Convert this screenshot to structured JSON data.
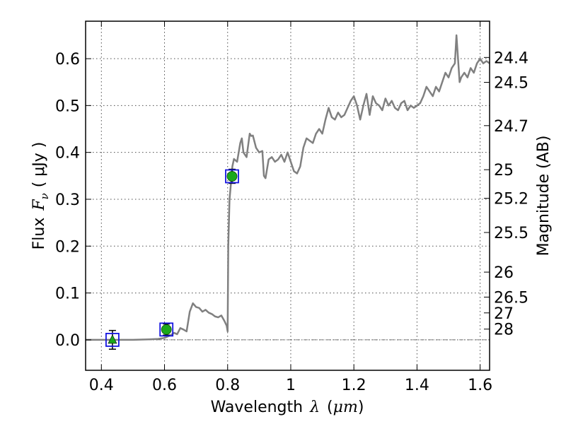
{
  "chart_data": {
    "type": "line",
    "title": "",
    "xlabel": {
      "text": "Wavelength",
      "symbol": "λ",
      "unit_open": "(",
      "unit": "μm",
      "unit_close": ")"
    },
    "ylabel": {
      "text": "Flux",
      "symbol": "F",
      "subscript": "ν",
      "unit": "( μJy )"
    },
    "y2label": "Magnitude (AB)",
    "xlim": [
      0.35,
      1.63
    ],
    "ylim": [
      -0.065,
      0.68
    ],
    "grid": true,
    "x_ticks": [
      0.4,
      0.6,
      0.8,
      1.0,
      1.2,
      1.4,
      1.6
    ],
    "x_tick_labels": [
      "0.4",
      "0.6",
      "0.8",
      "1",
      "1.2",
      "1.4",
      "1.6"
    ],
    "y_ticks": [
      0.0,
      0.1,
      0.2,
      0.3,
      0.4,
      0.5,
      0.6
    ],
    "y_tick_labels": [
      "0.0",
      "0.1",
      "0.2",
      "0.3",
      "0.4",
      "0.5",
      "0.6"
    ],
    "mag_ticks": [
      {
        "label": "24.4",
        "flux": 0.6026
      },
      {
        "label": "24.5",
        "flux": 0.5495
      },
      {
        "label": "24.7",
        "flux": 0.4571
      },
      {
        "label": "25",
        "flux": 0.3631
      },
      {
        "label": "25.2",
        "flux": 0.302
      },
      {
        "label": "25.5",
        "flux": 0.2291
      },
      {
        "label": "26",
        "flux": 0.1445
      },
      {
        "label": "26.5",
        "flux": 0.0912
      },
      {
        "label": "27",
        "flux": 0.0575
      },
      {
        "label": "28",
        "flux": 0.0229
      }
    ],
    "series": [
      {
        "kind": "model-spectrum",
        "color": "#808080",
        "x": [
          0.35,
          0.4,
          0.45,
          0.5,
          0.55,
          0.58,
          0.6,
          0.62,
          0.63,
          0.64,
          0.65,
          0.66,
          0.67,
          0.68,
          0.69,
          0.7,
          0.71,
          0.72,
          0.73,
          0.74,
          0.75,
          0.76,
          0.77,
          0.78,
          0.79,
          0.797,
          0.8,
          0.802,
          0.806,
          0.81,
          0.815,
          0.82,
          0.83,
          0.84,
          0.845,
          0.85,
          0.86,
          0.865,
          0.87,
          0.875,
          0.88,
          0.89,
          0.9,
          0.91,
          0.915,
          0.92,
          0.93,
          0.94,
          0.95,
          0.96,
          0.97,
          0.98,
          0.99,
          1.0,
          1.01,
          1.02,
          1.03,
          1.04,
          1.05,
          1.06,
          1.07,
          1.08,
          1.09,
          1.1,
          1.11,
          1.12,
          1.13,
          1.14,
          1.15,
          1.16,
          1.17,
          1.18,
          1.19,
          1.2,
          1.21,
          1.22,
          1.23,
          1.24,
          1.25,
          1.26,
          1.27,
          1.28,
          1.29,
          1.3,
          1.31,
          1.32,
          1.33,
          1.34,
          1.35,
          1.36,
          1.37,
          1.38,
          1.39,
          1.4,
          1.41,
          1.42,
          1.43,
          1.44,
          1.45,
          1.46,
          1.47,
          1.48,
          1.49,
          1.5,
          1.51,
          1.52,
          1.525,
          1.53,
          1.535,
          1.54,
          1.55,
          1.56,
          1.57,
          1.58,
          1.59,
          1.6,
          1.61,
          1.62,
          1.63
        ],
        "y": [
          0.0,
          0.0,
          0.0,
          0.0,
          0.001,
          0.002,
          0.004,
          0.01,
          0.015,
          0.012,
          0.025,
          0.022,
          0.018,
          0.06,
          0.078,
          0.07,
          0.068,
          0.06,
          0.064,
          0.058,
          0.055,
          0.05,
          0.048,
          0.052,
          0.04,
          0.03,
          0.018,
          0.2,
          0.3,
          0.33,
          0.37,
          0.386,
          0.38,
          0.42,
          0.43,
          0.4,
          0.39,
          0.415,
          0.44,
          0.435,
          0.436,
          0.41,
          0.4,
          0.403,
          0.35,
          0.345,
          0.385,
          0.39,
          0.38,
          0.385,
          0.395,
          0.38,
          0.4,
          0.38,
          0.36,
          0.355,
          0.37,
          0.41,
          0.43,
          0.425,
          0.42,
          0.44,
          0.45,
          0.44,
          0.47,
          0.495,
          0.475,
          0.47,
          0.485,
          0.475,
          0.48,
          0.495,
          0.51,
          0.52,
          0.5,
          0.47,
          0.5,
          0.525,
          0.48,
          0.52,
          0.505,
          0.5,
          0.49,
          0.515,
          0.5,
          0.51,
          0.495,
          0.49,
          0.505,
          0.51,
          0.49,
          0.5,
          0.495,
          0.5,
          0.505,
          0.52,
          0.54,
          0.53,
          0.52,
          0.54,
          0.53,
          0.55,
          0.57,
          0.56,
          0.58,
          0.59,
          0.65,
          0.6,
          0.55,
          0.56,
          0.57,
          0.56,
          0.58,
          0.57,
          0.59,
          0.6,
          0.59,
          0.595,
          0.59
        ]
      },
      {
        "kind": "photometry",
        "points": [
          {
            "x": 0.435,
            "y": 0.0,
            "yerr": 0.02,
            "marker": "triangle",
            "color": "#1ba81b"
          },
          {
            "x": 0.606,
            "y": 0.022,
            "yerr": 0.012,
            "marker": "circle",
            "color": "#1ba81b"
          },
          {
            "x": 0.814,
            "y": 0.349,
            "yerr": 0.015,
            "marker": "circle",
            "color": "#1ba81b"
          }
        ],
        "box_color": "#1515e0"
      }
    ]
  }
}
